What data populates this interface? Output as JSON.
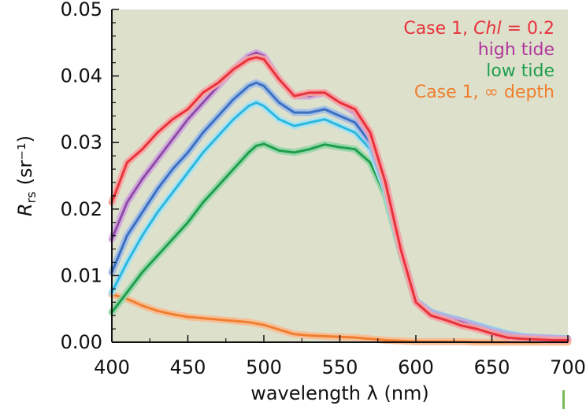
{
  "chart_data": {
    "type": "line",
    "xlabel": "wavelength λ (nm)",
    "ylabel_main": "R",
    "ylabel_sub": "rs",
    "ylabel_unit": "(sr⁻¹)",
    "xlim": [
      400,
      700
    ],
    "ylim": [
      0,
      0.05
    ],
    "x_ticks": [
      "400",
      "450",
      "500",
      "550",
      "600",
      "650",
      "700"
    ],
    "y_ticks": [
      "0.00",
      "0.01",
      "0.02",
      "0.03",
      "0.04",
      "0.05"
    ],
    "grid": false,
    "legend_position": "top-right",
    "legend": [
      {
        "text_prefix": "Case 1, ",
        "text_italic": "Chl",
        "text_suffix": " = 0.2",
        "color": "#e8323c"
      },
      {
        "text": "high tide",
        "color": "#b2349c"
      },
      {
        "text": "low tide",
        "color": "#1e9e4c"
      },
      {
        "text": "Case 1, ∞ depth",
        "color": "#f07e2e"
      }
    ],
    "x": [
      400,
      410,
      420,
      430,
      440,
      450,
      460,
      470,
      480,
      490,
      495,
      500,
      510,
      520,
      530,
      540,
      550,
      560,
      570,
      580,
      590,
      600,
      610,
      620,
      630,
      640,
      650,
      660,
      670,
      680,
      690,
      700
    ],
    "series": [
      {
        "style": "red",
        "color": "#e8323c",
        "glow": "#f7a3a0",
        "values": [
          0.021,
          0.027,
          0.029,
          0.0315,
          0.0335,
          0.035,
          0.0375,
          0.039,
          0.041,
          0.0425,
          0.0428,
          0.0425,
          0.0395,
          0.037,
          0.0375,
          0.0375,
          0.036,
          0.035,
          0.0315,
          0.024,
          0.014,
          0.006,
          0.004,
          0.0033,
          0.0025,
          0.002,
          0.0013,
          0.0007,
          0.0005,
          0.0004,
          0.0003,
          0.0003
        ]
      },
      {
        "style": "purple",
        "color": "#8e4aa6",
        "glow": "#cfa6dc",
        "values": [
          0.0155,
          0.021,
          0.0245,
          0.0275,
          0.0305,
          0.0335,
          0.036,
          0.0385,
          0.041,
          0.043,
          0.0435,
          0.043,
          0.0395,
          0.037,
          0.037,
          0.0375,
          0.036,
          0.0345,
          0.031,
          0.024,
          0.014,
          0.006,
          0.0042,
          0.0035,
          0.003,
          0.0022,
          0.0015,
          0.001,
          0.0007,
          0.0006,
          0.0005,
          0.0004
        ]
      },
      {
        "style": "blue",
        "color": "#3a6fc2",
        "glow": "#9fbde6",
        "values": [
          0.0105,
          0.016,
          0.0195,
          0.023,
          0.026,
          0.0285,
          0.0315,
          0.034,
          0.0365,
          0.0385,
          0.039,
          0.0385,
          0.036,
          0.0345,
          0.0345,
          0.035,
          0.034,
          0.033,
          0.03,
          0.0235,
          0.014,
          0.0062,
          0.0045,
          0.0038,
          0.0032,
          0.0025,
          0.0018,
          0.0012,
          0.0008,
          0.0007,
          0.0006,
          0.0005
        ]
      },
      {
        "style": "cyan",
        "color": "#2bb7de",
        "glow": "#a8e2f2",
        "values": [
          0.0075,
          0.012,
          0.016,
          0.0195,
          0.0225,
          0.0255,
          0.0285,
          0.031,
          0.0335,
          0.0355,
          0.036,
          0.0355,
          0.0335,
          0.0325,
          0.033,
          0.0335,
          0.0325,
          0.0315,
          0.029,
          0.023,
          0.0138,
          0.0062,
          0.0045,
          0.0038,
          0.0032,
          0.0026,
          0.0019,
          0.0013,
          0.0009,
          0.0007,
          0.0006,
          0.0005
        ]
      },
      {
        "style": "green",
        "color": "#1e9e4c",
        "glow": "#94d6a6",
        "values": [
          0.0045,
          0.0075,
          0.0105,
          0.013,
          0.0155,
          0.018,
          0.021,
          0.0235,
          0.026,
          0.0285,
          0.0295,
          0.0298,
          0.0288,
          0.0285,
          0.029,
          0.0297,
          0.0293,
          0.029,
          0.027,
          0.022,
          0.0135,
          0.006,
          0.0044,
          0.0037,
          0.0031,
          0.0025,
          0.0019,
          0.0013,
          0.0009,
          0.0007,
          0.0006,
          0.0005
        ]
      },
      {
        "style": "orange",
        "color": "#f07e2e",
        "glow": "#f7bc92",
        "values": [
          0.0072,
          0.0065,
          0.0055,
          0.0047,
          0.0042,
          0.0038,
          0.0036,
          0.0034,
          0.0032,
          0.003,
          0.0028,
          0.0026,
          0.0019,
          0.0012,
          0.001,
          0.0009,
          0.0008,
          0.0007,
          0.0005,
          0.0003,
          0.0002,
          0.0001,
          0.0001,
          0.0001,
          0.0001,
          0.0,
          0.0,
          0.0,
          0.0,
          0.0,
          0.0,
          0.0
        ]
      }
    ],
    "draw_order": [
      "orange",
      "green",
      "cyan",
      "blue",
      "purple",
      "red"
    ]
  },
  "colors": {
    "plot_background": "#dde1cc",
    "axis": "#111111",
    "marker_bar": "#7bb85a"
  }
}
